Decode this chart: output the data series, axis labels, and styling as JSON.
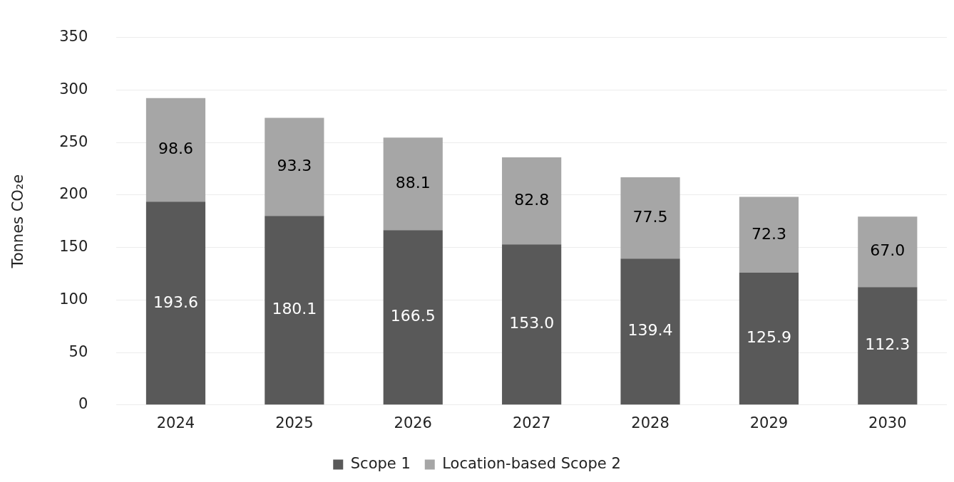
{
  "chart_data": {
    "type": "bar",
    "stacked": true,
    "ylabel": "Tonnes CO₂e",
    "categories": [
      "2024",
      "2025",
      "2026",
      "2027",
      "2028",
      "2029",
      "2030"
    ],
    "series": [
      {
        "name": "Scope 1",
        "color": "#595959",
        "values": [
          193.6,
          180.1,
          166.5,
          153.0,
          139.4,
          125.9,
          112.3
        ],
        "value_labels": [
          "193.6",
          "180.1",
          "166.5",
          "153.0",
          "139.4",
          "125.9",
          "112.3"
        ]
      },
      {
        "name": "Location-based Scope 2",
        "color": "#a6a6a6",
        "values": [
          98.6,
          93.3,
          88.1,
          82.8,
          77.5,
          72.3,
          67.0
        ],
        "value_labels": [
          "98.6",
          "93.3",
          "88.1",
          "82.8",
          "77.5",
          "72.3",
          "67.0"
        ]
      }
    ],
    "ylim": [
      0,
      350
    ],
    "yticks": [
      0,
      50,
      100,
      150,
      200,
      250,
      300,
      350
    ],
    "grid": "y",
    "legend": "bottom"
  }
}
